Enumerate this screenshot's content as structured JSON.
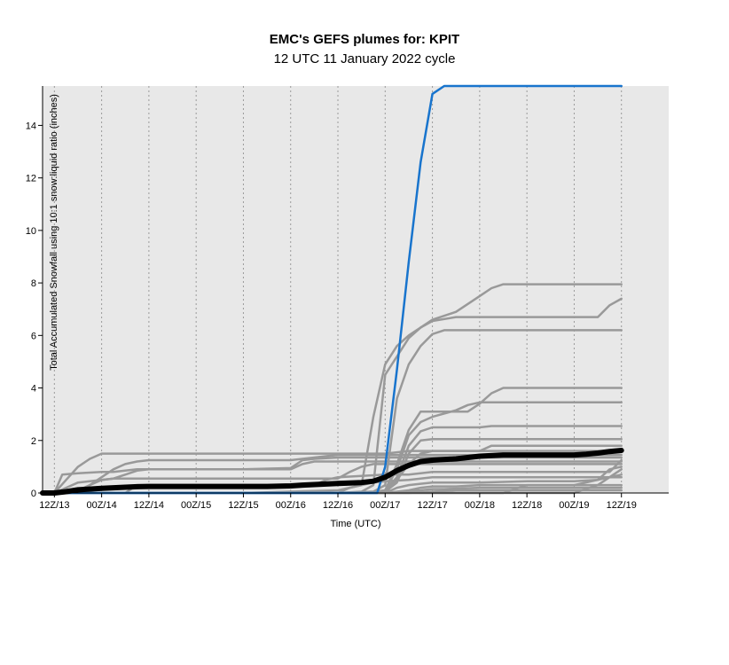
{
  "title": "EMC's GEFS plumes for: KPIT",
  "subtitle": "12 UTC 11 January 2022 cycle",
  "colors": {
    "background": "#ffffff",
    "plot_background": "#e8e8e8",
    "grid": "#9a9a9a",
    "member": "#999999",
    "mean": "#000000",
    "highlight": "#1874cd"
  },
  "chart_data": {
    "type": "line",
    "title": "EMC's GEFS plumes for: KPIT",
    "subtitle": "12 UTC 11 January 2022 cycle",
    "xlabel": "Time (UTC)",
    "ylabel": "Total Accumulated Snowfall using 10:1 snow:liquid ratio (inches)",
    "x_units": "forecast hour from 12Z/11",
    "xlim": [
      33,
      192
    ],
    "ylim": [
      0,
      15.5
    ],
    "grid": "vertical dotted lines at x ticks",
    "x_ticks": [
      {
        "x": 36,
        "label": "12Z/13"
      },
      {
        "x": 48,
        "label": "00Z/14"
      },
      {
        "x": 60,
        "label": "12Z/14"
      },
      {
        "x": 72,
        "label": "00Z/15"
      },
      {
        "x": 84,
        "label": "12Z/15"
      },
      {
        "x": 96,
        "label": "00Z/16"
      },
      {
        "x": 108,
        "label": "12Z/16"
      },
      {
        "x": 120,
        "label": "00Z/17"
      },
      {
        "x": 132,
        "label": "12Z/17"
      },
      {
        "x": 144,
        "label": "00Z/18"
      },
      {
        "x": 156,
        "label": "12Z/18"
      },
      {
        "x": 168,
        "label": "00Z/19"
      },
      {
        "x": 180,
        "label": "12Z/19"
      }
    ],
    "y_ticks": [
      0,
      2,
      4,
      6,
      8,
      10,
      12,
      14
    ],
    "series": [
      {
        "role": "member",
        "x": [
          33,
          36,
          39,
          42,
          45,
          48,
          51,
          54,
          60,
          84,
          96,
          108,
          114,
          117,
          120,
          123,
          126,
          129,
          132,
          138,
          144,
          147,
          150,
          156,
          168,
          174,
          177,
          180
        ],
        "y": [
          0,
          0,
          0,
          0,
          0,
          0,
          0,
          0,
          0,
          0,
          0.05,
          0.1,
          0.3,
          2.9,
          4.9,
          5.6,
          6.0,
          6.3,
          6.6,
          6.9,
          7.5,
          7.8,
          7.95,
          7.95,
          7.95,
          7.95,
          7.95,
          7.95
        ]
      },
      {
        "role": "member",
        "x": [
          33,
          108,
          114,
          117,
          120,
          123,
          126,
          129,
          132,
          138,
          144,
          150,
          156,
          168,
          174,
          177,
          180
        ],
        "y": [
          0,
          0,
          0.05,
          0.3,
          4.5,
          5.2,
          5.9,
          6.3,
          6.55,
          6.7,
          6.7,
          6.7,
          6.7,
          6.7,
          6.7,
          7.15,
          7.4
        ]
      },
      {
        "role": "member",
        "x": [
          33,
          108,
          117,
          120,
          123,
          126,
          129,
          132,
          135,
          138,
          144,
          150,
          156,
          168,
          180
        ],
        "y": [
          0,
          0,
          0.05,
          0.3,
          3.6,
          4.9,
          5.6,
          6.05,
          6.2,
          6.2,
          6.2,
          6.2,
          6.2,
          6.2,
          6.2
        ]
      },
      {
        "role": "member",
        "x": [
          33,
          108,
          117,
          120,
          123,
          126,
          129,
          132,
          138,
          141,
          144,
          147,
          150,
          156,
          168,
          180
        ],
        "y": [
          0,
          0,
          0.05,
          0.1,
          1.1,
          2.4,
          3.1,
          3.1,
          3.1,
          3.1,
          3.4,
          3.8,
          4.0,
          4.0,
          4.0,
          4.0
        ]
      },
      {
        "role": "member",
        "x": [
          33,
          117,
          120,
          123,
          126,
          129,
          132,
          138,
          141,
          144,
          147,
          150,
          156,
          168,
          180
        ],
        "y": [
          0,
          0,
          0.1,
          0.9,
          2.2,
          2.7,
          2.9,
          3.15,
          3.35,
          3.45,
          3.45,
          3.45,
          3.45,
          3.45,
          3.45
        ]
      },
      {
        "role": "member",
        "x": [
          33,
          117,
          120,
          123,
          126,
          129,
          132,
          138,
          141,
          144,
          147,
          150,
          156,
          168,
          180
        ],
        "y": [
          0,
          0,
          0.1,
          0.6,
          1.8,
          2.35,
          2.5,
          2.5,
          2.5,
          2.5,
          2.55,
          2.55,
          2.55,
          2.55,
          2.55
        ]
      },
      {
        "role": "member",
        "x": [
          33,
          117,
          120,
          123,
          126,
          129,
          132,
          138,
          141,
          144,
          147,
          150,
          156,
          168,
          180
        ],
        "y": [
          0,
          0,
          0.05,
          0.4,
          1.5,
          2.0,
          2.05,
          2.05,
          2.05,
          2.05,
          2.05,
          2.05,
          2.05,
          2.05,
          2.05
        ]
      },
      {
        "role": "member",
        "x": [
          33,
          36,
          39,
          42,
          45,
          48,
          51,
          54,
          56,
          60,
          84,
          96,
          120,
          123,
          126,
          129,
          132,
          138,
          141,
          144,
          147,
          150,
          156,
          168,
          180
        ],
        "y": [
          0,
          0,
          0.5,
          1.0,
          1.3,
          1.5,
          1.5,
          1.5,
          1.5,
          1.5,
          1.5,
          1.5,
          1.5,
          1.55,
          1.6,
          1.6,
          1.6,
          1.6,
          1.6,
          1.6,
          1.8,
          1.8,
          1.8,
          1.8,
          1.8
        ]
      },
      {
        "role": "member",
        "x": [
          33,
          36,
          42,
          45,
          48,
          51,
          54,
          57,
          60,
          96,
          99,
          102,
          105,
          108,
          120,
          132,
          144,
          156,
          168,
          180
        ],
        "y": [
          0,
          0,
          0.05,
          0.3,
          0.6,
          0.9,
          1.1,
          1.2,
          1.25,
          1.25,
          1.3,
          1.35,
          1.4,
          1.45,
          1.45,
          1.45,
          1.45,
          1.45,
          1.45,
          1.45
        ]
      },
      {
        "role": "member",
        "x": [
          33,
          36,
          38,
          42,
          48,
          51,
          54,
          57,
          60,
          84,
          96,
          99,
          102,
          108,
          117,
          120,
          132,
          144,
          156,
          168,
          180
        ],
        "y": [
          0,
          0,
          0.7,
          0.75,
          0.8,
          0.8,
          0.85,
          0.9,
          0.9,
          0.9,
          0.95,
          1.25,
          1.3,
          1.35,
          1.35,
          1.35,
          1.35,
          1.35,
          1.35,
          1.35,
          1.35
        ]
      },
      {
        "role": "member",
        "x": [
          33,
          36,
          42,
          45,
          48,
          51,
          54,
          57,
          60,
          96,
          99,
          102,
          108,
          114,
          117,
          120,
          132,
          144,
          156,
          168,
          180
        ],
        "y": [
          0,
          0,
          0.1,
          0.3,
          0.5,
          0.55,
          0.7,
          0.85,
          0.9,
          0.9,
          1.1,
          1.2,
          1.2,
          1.2,
          1.2,
          1.2,
          1.2,
          1.2,
          1.2,
          1.2,
          1.2
        ]
      },
      {
        "role": "member",
        "x": [
          33,
          36,
          39,
          42,
          48,
          51,
          54,
          57,
          60,
          96,
          108,
          111,
          114,
          117,
          120,
          132,
          144,
          156,
          168,
          180
        ],
        "y": [
          0,
          0,
          0.2,
          0.4,
          0.5,
          0.55,
          0.55,
          0.55,
          0.55,
          0.55,
          0.55,
          0.8,
          1.0,
          1.1,
          1.1,
          1.1,
          1.1,
          1.1,
          1.1,
          1.1
        ]
      },
      {
        "role": "member",
        "x": [
          33,
          54,
          57,
          60,
          84,
          96,
          102,
          105,
          108,
          120,
          126,
          129,
          132,
          144,
          156,
          168,
          177,
          180
        ],
        "y": [
          0,
          0,
          0.3,
          0.3,
          0.3,
          0.3,
          0.3,
          0.5,
          0.6,
          0.7,
          0.7,
          0.75,
          0.8,
          0.8,
          0.8,
          0.8,
          0.8,
          1.25
        ]
      },
      {
        "role": "member",
        "x": [
          33,
          108,
          111,
          114,
          117,
          120,
          126,
          132,
          144,
          156,
          168,
          180
        ],
        "y": [
          0,
          0,
          0.2,
          0.3,
          0.4,
          0.45,
          0.5,
          0.6,
          0.6,
          0.6,
          0.6,
          0.6
        ]
      },
      {
        "role": "member",
        "x": [
          33,
          120,
          123,
          126,
          129,
          132,
          144,
          156,
          168,
          174,
          177,
          180
        ],
        "y": [
          0,
          0,
          0.2,
          0.3,
          0.35,
          0.4,
          0.4,
          0.45,
          0.45,
          0.5,
          0.6,
          0.7
        ]
      },
      {
        "role": "member",
        "x": [
          33,
          120,
          126,
          129,
          132,
          138,
          144,
          156,
          168,
          180
        ],
        "y": [
          0,
          0,
          0.1,
          0.2,
          0.25,
          0.25,
          0.3,
          0.3,
          0.3,
          0.3
        ]
      },
      {
        "role": "member",
        "x": [
          33,
          120,
          129,
          132,
          135,
          144,
          156,
          168,
          180
        ],
        "y": [
          0,
          0,
          0.1,
          0.15,
          0.15,
          0.2,
          0.2,
          0.2,
          0.2
        ]
      },
      {
        "role": "member",
        "x": [
          33,
          126,
          132,
          138,
          144,
          156,
          168,
          180
        ],
        "y": [
          0,
          0,
          0.05,
          0.1,
          0.1,
          0.1,
          0.1,
          0.1
        ]
      },
      {
        "role": "member",
        "x": [
          33,
          150,
          156,
          168,
          174,
          177,
          180
        ],
        "y": [
          0,
          0,
          0.3,
          0.3,
          0.5,
          0.9,
          1.0
        ]
      },
      {
        "role": "member",
        "x": [
          33,
          168,
          174,
          177,
          180
        ],
        "y": [
          0,
          0,
          0.3,
          0.6,
          0.9
        ]
      },
      {
        "role": "member",
        "x": [
          33,
          120,
          123,
          126,
          129,
          132,
          138,
          141,
          144,
          147,
          150,
          156,
          168,
          180
        ],
        "y": [
          0,
          0,
          0.5,
          1.1,
          1.5,
          1.6,
          1.6,
          1.6,
          1.6,
          1.6,
          1.6,
          1.6,
          1.6,
          1.6
        ]
      },
      {
        "role": "highlight",
        "x": [
          33,
          118,
          120,
          123,
          126,
          129,
          132,
          135,
          138,
          144,
          156,
          168,
          180
        ],
        "y": [
          0,
          0,
          1.0,
          4.7,
          8.8,
          12.6,
          15.2,
          15.5,
          15.5,
          15.5,
          15.5,
          15.5,
          15.5
        ]
      },
      {
        "role": "mean",
        "x": [
          33,
          36,
          39,
          42,
          45,
          48,
          51,
          54,
          57,
          60,
          66,
          72,
          78,
          84,
          90,
          96,
          99,
          102,
          105,
          108,
          111,
          114,
          117,
          120,
          123,
          126,
          129,
          132,
          138,
          144,
          150,
          156,
          162,
          168,
          171,
          174,
          177,
          180
        ],
        "y": [
          0,
          0,
          0.05,
          0.12,
          0.15,
          0.18,
          0.2,
          0.22,
          0.24,
          0.25,
          0.25,
          0.25,
          0.25,
          0.25,
          0.25,
          0.27,
          0.3,
          0.32,
          0.34,
          0.36,
          0.38,
          0.4,
          0.45,
          0.6,
          0.85,
          1.05,
          1.2,
          1.25,
          1.3,
          1.4,
          1.45,
          1.45,
          1.45,
          1.45,
          1.48,
          1.52,
          1.58,
          1.62
        ]
      }
    ]
  }
}
